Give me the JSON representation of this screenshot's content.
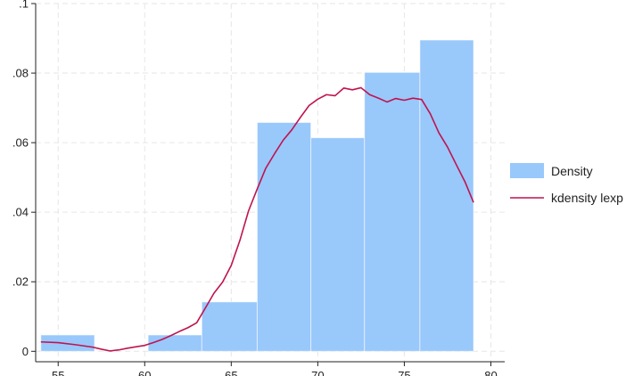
{
  "chart_data": {
    "type": "bar",
    "title": "",
    "xlabel": "",
    "ylabel": "",
    "xlim": [
      53.7,
      80.8
    ],
    "ylim": [
      -0.003,
      0.1
    ],
    "x_ticks": [
      55,
      60,
      65,
      70,
      75,
      80
    ],
    "x_tick_labels": [
      "55",
      "60",
      "65",
      "70",
      "75",
      "80"
    ],
    "y_ticks": [
      0,
      0.02,
      0.04,
      0.06,
      0.08,
      0.1
    ],
    "y_tick_labels": [
      "0",
      ".02",
      ".04",
      ".06",
      ".08",
      ".1"
    ],
    "grid": true,
    "legend_position": "right",
    "series": [
      {
        "name": "Density",
        "type": "histogram",
        "color": "#99c8fb",
        "bins": [
          {
            "x0": 54.0,
            "x1": 57.1,
            "value": 0.0047
          },
          {
            "x0": 57.1,
            "x1": 60.2,
            "value": 0.0
          },
          {
            "x0": 60.2,
            "x1": 63.3,
            "value": 0.0047
          },
          {
            "x0": 63.3,
            "x1": 66.5,
            "value": 0.0142
          },
          {
            "x0": 66.5,
            "x1": 69.6,
            "value": 0.0658
          },
          {
            "x0": 69.6,
            "x1": 72.7,
            "value": 0.0614
          },
          {
            "x0": 72.7,
            "x1": 75.9,
            "value": 0.0802
          },
          {
            "x0": 75.9,
            "x1": 79.0,
            "value": 0.0895
          }
        ]
      },
      {
        "name": "kdensity lexp",
        "type": "line",
        "color": "#c0134e",
        "x": [
          54.0,
          55.0,
          56.0,
          57.0,
          57.5,
          58.0,
          58.5,
          59.0,
          59.5,
          60.0,
          60.5,
          61.0,
          61.5,
          62.0,
          62.5,
          63.0,
          63.5,
          64.0,
          64.5,
          65.0,
          65.5,
          66.0,
          66.5,
          67.0,
          67.5,
          68.0,
          68.5,
          69.0,
          69.5,
          70.0,
          70.5,
          71.0,
          71.5,
          72.0,
          72.5,
          73.0,
          73.5,
          74.0,
          74.5,
          75.0,
          75.5,
          76.0,
          76.5,
          77.0,
          77.5,
          78.0,
          78.5,
          79.0
        ],
        "y": [
          0.0027,
          0.0025,
          0.0019,
          0.0012,
          0.0006,
          0.0001,
          0.0004,
          0.0009,
          0.0013,
          0.0017,
          0.0025,
          0.0034,
          0.0045,
          0.0057,
          0.0068,
          0.0082,
          0.0124,
          0.0167,
          0.0199,
          0.0247,
          0.0319,
          0.0404,
          0.0467,
          0.0527,
          0.0568,
          0.0607,
          0.0637,
          0.0673,
          0.0707,
          0.0725,
          0.0738,
          0.0735,
          0.0757,
          0.0752,
          0.0758,
          0.0738,
          0.0728,
          0.0717,
          0.0727,
          0.0722,
          0.0728,
          0.0724,
          0.0683,
          0.0628,
          0.0587,
          0.0537,
          0.0488,
          0.0428
        ]
      }
    ]
  }
}
